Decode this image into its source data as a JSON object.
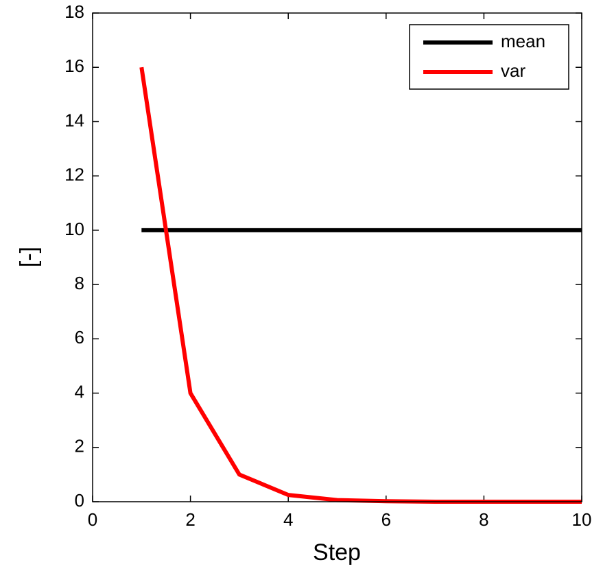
{
  "chart_data": {
    "type": "line",
    "x_label": "Step",
    "y_label": "[-]",
    "x": [
      1,
      2,
      3,
      4,
      5,
      6,
      7,
      8,
      9,
      10
    ],
    "series": [
      {
        "name": "mean",
        "color": "#000000",
        "values": [
          10,
          10,
          10,
          10,
          10,
          10,
          10,
          10,
          10,
          10
        ]
      },
      {
        "name": "var",
        "color": "#ff0000",
        "values": [
          16,
          4,
          1,
          0.25,
          0.06,
          0.02,
          0,
          0,
          0,
          0
        ]
      }
    ],
    "xlim": [
      0,
      10
    ],
    "xticks": [
      0,
      2,
      4,
      6,
      8,
      10
    ],
    "ylim": [
      0,
      18
    ],
    "yticks": [
      0,
      2,
      4,
      6,
      8,
      10,
      12,
      14,
      16,
      18
    ],
    "grid": false,
    "legend": "top-right"
  }
}
